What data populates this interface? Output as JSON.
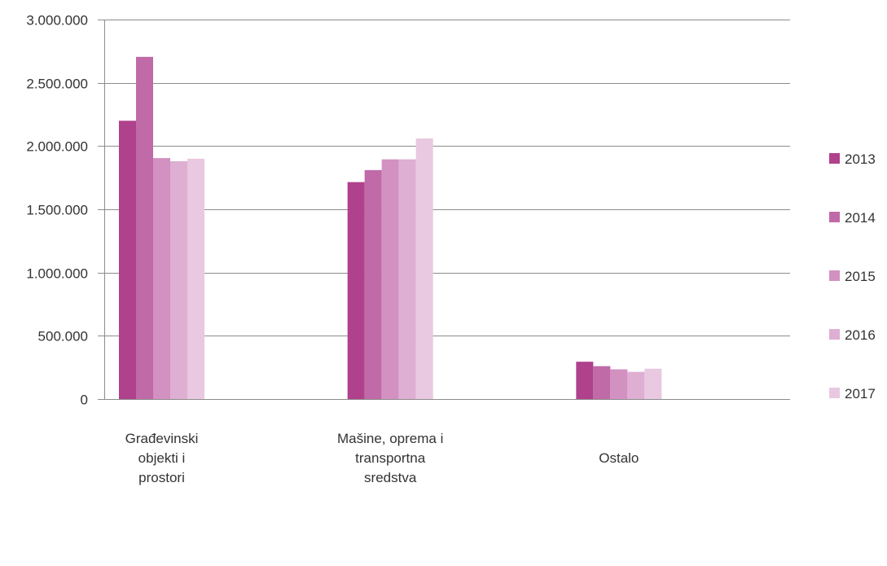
{
  "chart_data": {
    "type": "bar",
    "categories": [
      [
        "Građevinski",
        "objekti i",
        "prostori"
      ],
      [
        "Mašine, oprema i",
        "transportna",
        "sredstva"
      ],
      [
        "Ostalo"
      ]
    ],
    "series": [
      {
        "name": "2013",
        "color": "#b0418c",
        "values": [
          2200000,
          1715000,
          295000
        ]
      },
      {
        "name": "2014",
        "color": "#c06aa8",
        "values": [
          2705000,
          1810000,
          260000
        ]
      },
      {
        "name": "2015",
        "color": "#d291c1",
        "values": [
          1905000,
          1895000,
          235000
        ]
      },
      {
        "name": "2016",
        "color": "#deaed3",
        "values": [
          1880000,
          1895000,
          215000
        ]
      },
      {
        "name": "2017",
        "color": "#e9c8e1",
        "values": [
          1900000,
          2060000,
          240000
        ]
      }
    ],
    "yticks": [
      "0",
      "500.000",
      "1.000.000",
      "1.500.000",
      "2.000.000",
      "2.500.000",
      "3.000.000"
    ],
    "ylim": [
      0,
      3000000
    ],
    "grid": true,
    "legend": "right",
    "title": "",
    "xlabel": "",
    "ylabel": ""
  }
}
